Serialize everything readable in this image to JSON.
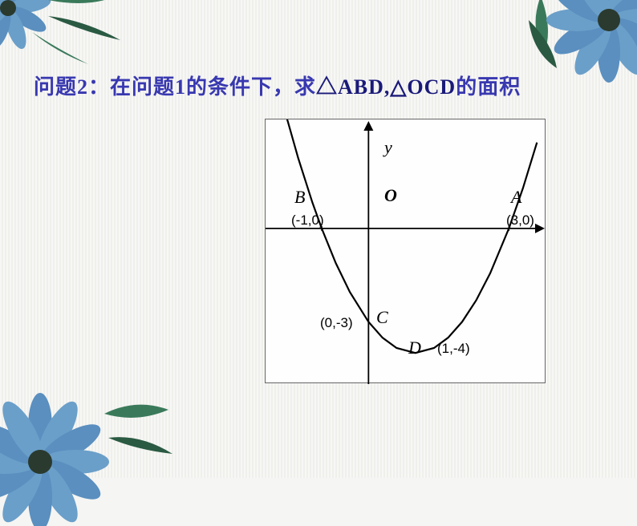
{
  "title": {
    "prefix": "问题2：在问题1的条件下，求",
    "tri1": "△ABD,",
    "tri2": "△OCD",
    "suffix": "的面积"
  },
  "chart": {
    "type": "scatter-line",
    "background_color": "#fefefe",
    "border_color": "#666666",
    "axis_color": "#000000",
    "curve_color": "#000000",
    "curve_width": 2.2,
    "axis_width": 1.8,
    "xlim": [
      -2.2,
      3.8
    ],
    "ylim": [
      -5.0,
      3.5
    ],
    "origin_label": "O",
    "y_axis_label": "y",
    "points": {
      "A": {
        "x": 3,
        "y": 0,
        "label": "A",
        "coord_text": "(3,0)"
      },
      "B": {
        "x": -1,
        "y": 0,
        "label": "B",
        "coord_text": "(-1,0)"
      },
      "C": {
        "x": 0,
        "y": -3,
        "label": "C",
        "coord_text": "(0,-3)"
      },
      "D": {
        "x": 1,
        "y": -4,
        "label": "D",
        "coord_text": "(1,-4)"
      }
    },
    "curve": {
      "fn": "x^2 - 2x - 3",
      "samples_x": [
        -1.8,
        -1.5,
        -1.2,
        -1,
        -0.7,
        -0.4,
        0,
        0.3,
        0.6,
        1,
        1.4,
        1.7,
        2,
        2.3,
        2.6,
        3,
        3.3,
        3.6
      ],
      "samples_y": [
        3.84,
        2.25,
        0.84,
        0,
        -1.11,
        -2.04,
        -3,
        -3.51,
        -3.84,
        -4,
        -3.84,
        -3.51,
        -3,
        -2.31,
        -1.44,
        0,
        1.29,
        2.76
      ]
    },
    "label_fontsize": 22,
    "coord_fontsize": 17
  },
  "decor": {
    "flower_petal_color": "#5a8fbf",
    "flower_center_color": "#2a3a2e",
    "leaf_color": "#3a7a5a",
    "leaf_accent": "#2a5a42"
  }
}
